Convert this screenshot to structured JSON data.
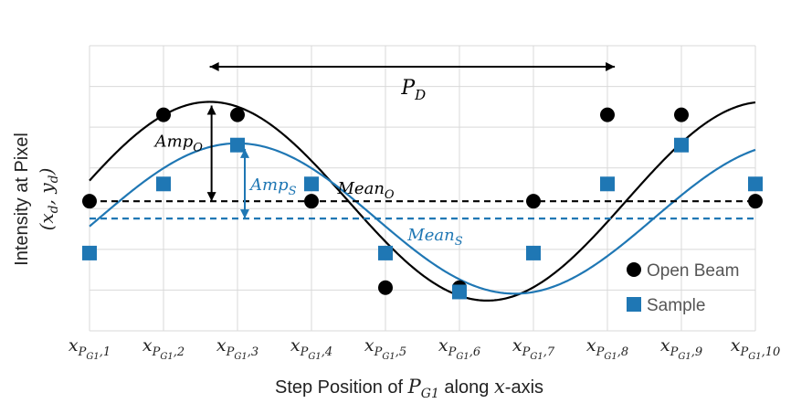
{
  "chart_data": {
    "type": "line",
    "xlabel": {
      "pre": "Step Position of ",
      "var": "P",
      "sub": "G1",
      "mid": " along ",
      "var2": "x",
      "post": "-axis"
    },
    "ylabel": {
      "line1": "Intensity at Pixel",
      "line2": "(x",
      "line2_sub_d": "d",
      "line2_mid": ", y",
      "line2_end": ")"
    },
    "x_tick_labels": [
      {
        "base": "x",
        "sub": "P",
        "subsub": "G1",
        "idx": ",1"
      },
      {
        "base": "x",
        "sub": "P",
        "subsub": "G1",
        "idx": ",2"
      },
      {
        "base": "x",
        "sub": "P",
        "subsub": "G1",
        "idx": ",3"
      },
      {
        "base": "x",
        "sub": "P",
        "subsub": "G1",
        "idx": ",4"
      },
      {
        "base": "x",
        "sub": "P",
        "subsub": "G1",
        "idx": ",5"
      },
      {
        "base": "x",
        "sub": "P",
        "subsub": "G1",
        "idx": ",6"
      },
      {
        "base": "x",
        "sub": "P",
        "subsub": "G1",
        "idx": ",7"
      },
      {
        "base": "x",
        "sub": "P",
        "subsub": "G1",
        "idx": ",8"
      },
      {
        "base": "x",
        "sub": "P",
        "subsub": "G1",
        "idx": ",9"
      },
      {
        "base": "x",
        "sub": "P",
        "subsub": "G1",
        "idx": ",10"
      }
    ],
    "x": [
      1,
      2,
      3,
      4,
      5,
      6,
      7,
      8,
      9,
      10
    ],
    "xlim": [
      1,
      10
    ],
    "ylim": [
      -1.5,
      1.8
    ],
    "grid": true,
    "series": [
      {
        "name": "Open Beam",
        "marker": "circle",
        "color": "#000000",
        "values": [
          0.0,
          1.0,
          1.0,
          0.0,
          -1.0,
          -1.0,
          0.0,
          1.0,
          1.0,
          0.0
        ],
        "curve": {
          "mean": 0.0,
          "amplitude": 1.15,
          "period": 7.5,
          "peak_at": 2.625
        }
      },
      {
        "name": "Sample",
        "marker": "square",
        "color": "#1f77b4",
        "values": [
          -0.6,
          0.2,
          0.65,
          0.2,
          -0.6,
          -1.05,
          -0.6,
          0.2,
          0.65,
          0.2
        ],
        "curve": {
          "mean": -0.2,
          "amplitude": 0.87,
          "period": 7.5,
          "peak_at": 3.0
        }
      }
    ],
    "annotations": {
      "period": {
        "var": "P",
        "sub": "D",
        "from_x": 2.625,
        "to_x": 8.1
      },
      "amp_open": {
        "var": "Amp",
        "sub": "O"
      },
      "amp_sample": {
        "var": "Amp",
        "sub": "S"
      },
      "mean_open": {
        "var": "Mean",
        "sub": "O"
      },
      "mean_sample": {
        "var": "Mean",
        "sub": "S"
      }
    },
    "legend_position": "bottom-right"
  }
}
